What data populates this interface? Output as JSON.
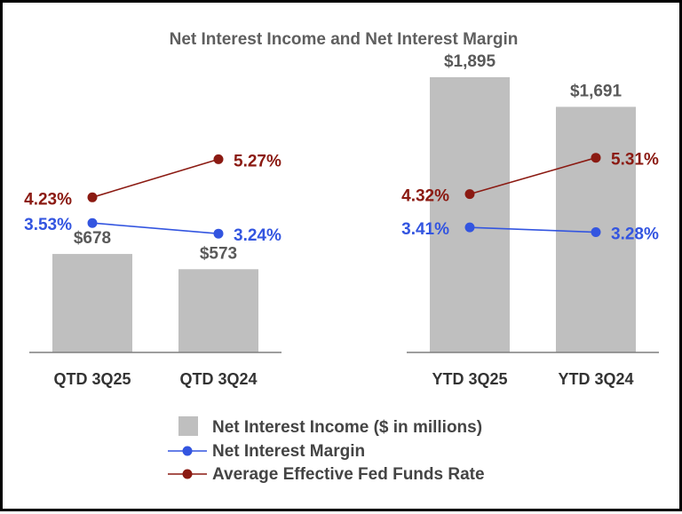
{
  "chart_data": {
    "type": "bar",
    "title": "Net Interest Income and Net Interest Margin",
    "categories": [
      "QTD 3Q25",
      "QTD 3Q24",
      "YTD 3Q25",
      "YTD 3Q24"
    ],
    "groups": [
      {
        "name": "QTD",
        "categories": [
          "QTD 3Q25",
          "QTD 3Q24"
        ]
      },
      {
        "name": "YTD",
        "categories": [
          "YTD 3Q25",
          "YTD 3Q24"
        ]
      }
    ],
    "series": [
      {
        "name": "Net Interest Income ($ in millions)",
        "kind": "bar",
        "color": "#bfbfbf",
        "values": [
          678,
          573,
          1895,
          1691
        ],
        "labels": [
          "$678",
          "$573",
          "$1,895",
          "$1,691"
        ]
      },
      {
        "name": "Net Interest Margin",
        "kind": "line",
        "color": "#3355e0",
        "values": [
          3.53,
          3.24,
          3.41,
          3.28
        ],
        "labels": [
          "3.53%",
          "3.24%",
          "3.41%",
          "3.28%"
        ]
      },
      {
        "name": "Average Effective Fed Funds Rate",
        "kind": "line",
        "color": "#8b1a12",
        "values": [
          4.23,
          5.27,
          4.32,
          5.31
        ],
        "labels": [
          "4.23%",
          "5.27%",
          "4.32%",
          "5.31%"
        ]
      }
    ],
    "bar_ylim": [
      0,
      2100
    ],
    "line_ylim": [
      0,
      8.5
    ],
    "legend": "bottom",
    "grid": false
  },
  "colors": {
    "bar": "#bfbfbf",
    "nim": "#3355e0",
    "fed": "#8b1a12",
    "axis": "#7f7f7f"
  }
}
